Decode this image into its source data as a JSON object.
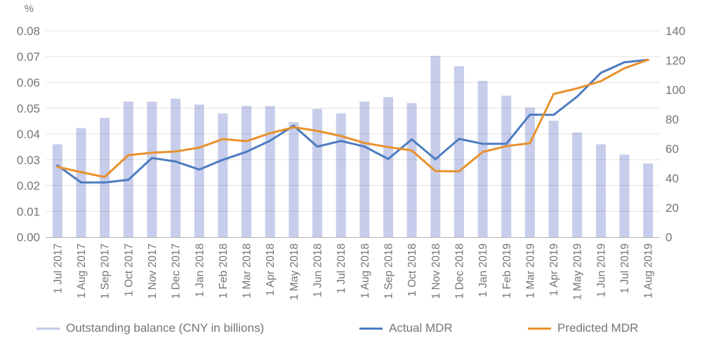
{
  "chart_data": {
    "type": "combo-bar-line",
    "categories": [
      "1 Jul 2017",
      "1 Aug 2017",
      "1 Sep 2017",
      "1 Oct 2017",
      "1 Nov 2017",
      "1 Dec 2017",
      "1 Jan 2018",
      "1 Feb 2018",
      "1 Mar 2018",
      "1 Apr 2018",
      "1 May 2018",
      "1 Jun 2018",
      "1 Jul 2018",
      "1 Aug 2018",
      "1 Sep 2018",
      "1 Oct 2018",
      "1 Nov 2018",
      "1 Dec 2018",
      "1 Jan 2019",
      "1 Feb 2019",
      "1 Mar 2019",
      "1 Apr 2019",
      "1 May 2019",
      "1 Jun 2019",
      "1 Jul 2019",
      "1 Aug 2019"
    ],
    "series": [
      {
        "name": "Outstanding balance (CNY in billions)",
        "type": "bar",
        "axis": "right",
        "color": "#c7cdeb",
        "legend_color": "#c3cae8",
        "values": [
          63,
          74,
          81,
          92,
          92,
          94,
          90,
          84,
          89,
          89,
          78,
          87,
          84,
          92,
          95,
          91,
          123,
          116,
          106,
          96,
          88,
          79,
          71,
          63,
          56,
          50
        ]
      },
      {
        "name": "Actual MDR",
        "type": "line",
        "axis": "left",
        "color": "#4d7cc0",
        "legend_color": "#4d7cc0",
        "values": [
          0.0278,
          0.0212,
          0.0212,
          0.0222,
          0.0307,
          0.0293,
          0.0262,
          0.03,
          0.0331,
          0.0374,
          0.0432,
          0.0351,
          0.0373,
          0.0351,
          0.0303,
          0.0379,
          0.0302,
          0.0381,
          0.0362,
          0.0362,
          0.0475,
          0.0474,
          0.0545,
          0.0637,
          0.0678,
          0.0688
        ]
      },
      {
        "name": "Predicted MDR",
        "type": "line",
        "axis": "left",
        "color": "#e8912d",
        "legend_color": "#e8912d",
        "values": [
          0.0272,
          0.0252,
          0.0233,
          0.0318,
          0.0327,
          0.0332,
          0.0347,
          0.038,
          0.0372,
          0.0403,
          0.0426,
          0.0412,
          0.0392,
          0.0365,
          0.0349,
          0.0336,
          0.0256,
          0.0255,
          0.033,
          0.0353,
          0.0364,
          0.0555,
          0.0577,
          0.0605,
          0.0655,
          0.0688
        ]
      }
    ],
    "left_axis": {
      "title": "%",
      "min": 0,
      "max": 0.08,
      "tick_step": 0.01,
      "ticks": [
        "0.00",
        "0.01",
        "0.02",
        "0.03",
        "0.04",
        "0.05",
        "0.06",
        "0.07",
        "0.08"
      ]
    },
    "right_axis": {
      "min": 0,
      "max": 140,
      "tick_step": 20,
      "ticks": [
        "0",
        "20",
        "40",
        "60",
        "80",
        "100",
        "120",
        "140"
      ]
    },
    "grid": true,
    "legend_position": "bottom",
    "styles": {
      "tick_label_color": "#757575",
      "gridline_rgba": "rgba(0,0,0,0.11)",
      "baseline_color": "#b3b3b3",
      "background": "#ffffff"
    }
  }
}
